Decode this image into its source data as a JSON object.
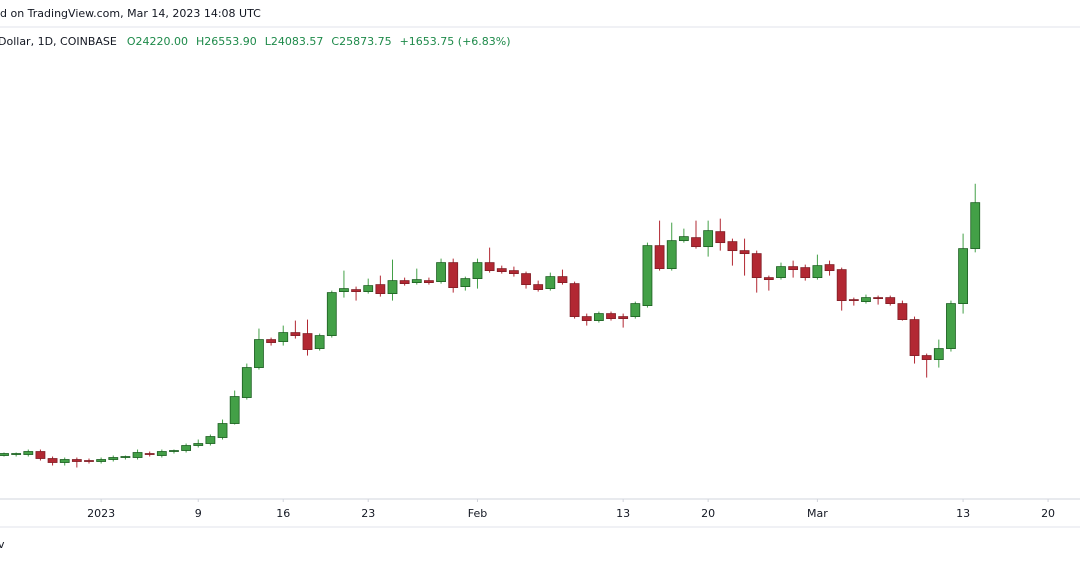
{
  "chart_data": {
    "type": "candlestick",
    "header": "d on TradingView.com, Mar 14, 2023 14:08 UTC",
    "symbol": "Dollar, 1D, COINBASE",
    "legend_values": [
      "O24220.00",
      "H26553.90",
      "L24083.57",
      "C25873.75",
      "+1653.75 (+6.83%)"
    ],
    "footer": "v",
    "up_color": "#43a047",
    "down_color": "#b22833",
    "xlim": [
      -0.33,
      88.63
    ],
    "ylim": [
      15200,
      32200
    ],
    "xticks": [
      {
        "value": 8,
        "label": "2023"
      },
      {
        "value": 16,
        "label": "9"
      },
      {
        "value": 23,
        "label": "16"
      },
      {
        "value": 30,
        "label": "23"
      },
      {
        "value": 39,
        "label": "Feb"
      },
      {
        "value": 51,
        "label": "13"
      },
      {
        "value": 58,
        "label": "20"
      },
      {
        "value": 67,
        "label": "Mar"
      },
      {
        "value": 79,
        "label": "13"
      },
      {
        "value": 86,
        "label": "20"
      }
    ],
    "open": [
      16766,
      16802,
      16802,
      16910,
      16658,
      16514,
      16622,
      16586,
      16550,
      16622,
      16694,
      16694,
      16838,
      16766,
      16910,
      16946,
      17126,
      17198,
      17414,
      17918,
      18854,
      19934,
      20942,
      20870,
      21194,
      21158,
      20618,
      21086,
      22670,
      22742,
      22670,
      22922,
      22598,
      23066,
      22994,
      23066,
      23030,
      23714,
      22850,
      23138,
      23714,
      23498,
      23426,
      23318,
      22922,
      22778,
      23210,
      22958,
      21770,
      21626,
      21878,
      21770,
      21770,
      22166,
      24326,
      23498,
      24506,
      24614,
      24290,
      24830,
      24470,
      24146,
      24038,
      23174,
      23174,
      23570,
      23534,
      23174,
      23642,
      23462,
      22382,
      22310,
      22454,
      22454,
      22238,
      21662,
      20366,
      20222,
      20618,
      22238,
      24220.0
    ],
    "high": [
      16874,
      16874,
      16982,
      16982,
      16730,
      16694,
      16694,
      16658,
      16694,
      16766,
      16766,
      16982,
      16910,
      16982,
      16982,
      17198,
      17342,
      17522,
      18062,
      19106,
      20078,
      21338,
      21014,
      21446,
      21626,
      21662,
      21158,
      22706,
      23426,
      22850,
      23138,
      23246,
      23822,
      23174,
      23498,
      23174,
      23858,
      23858,
      23210,
      23858,
      24254,
      23606,
      23570,
      23390,
      23066,
      23354,
      23462,
      23030,
      21878,
      21950,
      21950,
      21878,
      22310,
      24434,
      25226,
      25154,
      24938,
      25226,
      25226,
      25298,
      24578,
      24578,
      24146,
      23246,
      23714,
      23786,
      23642,
      24002,
      23786,
      23534,
      22454,
      22562,
      22526,
      22526,
      22346,
      21770,
      20438,
      20942,
      22346,
      24758,
      26553.9
    ],
    "low": [
      16730,
      16730,
      16730,
      16586,
      16406,
      16406,
      16334,
      16478,
      16478,
      16550,
      16622,
      16622,
      16730,
      16694,
      16838,
      16874,
      17054,
      17126,
      17342,
      17882,
      18782,
      19862,
      20726,
      20726,
      20978,
      20366,
      20546,
      21014,
      22454,
      22346,
      22598,
      22490,
      22346,
      22886,
      22922,
      22922,
      22958,
      22634,
      22706,
      22778,
      23354,
      23318,
      23210,
      22778,
      22670,
      22706,
      22922,
      21698,
      21446,
      21554,
      21626,
      21374,
      21698,
      22094,
      23426,
      23426,
      24434,
      24218,
      23930,
      24146,
      23606,
      23246,
      22634,
      22706,
      23102,
      23174,
      23066,
      23102,
      23246,
      21986,
      22166,
      22238,
      22202,
      22166,
      21626,
      20078,
      19574,
      19934,
      20510,
      21878,
      24083.57
    ],
    "close": [
      16838,
      16838,
      16910,
      16658,
      16514,
      16622,
      16550,
      16550,
      16622,
      16694,
      16730,
      16874,
      16802,
      16910,
      16946,
      17126,
      17198,
      17450,
      17918,
      18890,
      19934,
      20942,
      20834,
      21194,
      21086,
      20582,
      21086,
      22634,
      22778,
      22670,
      22886,
      22598,
      23066,
      22958,
      23102,
      22994,
      23714,
      22814,
      23138,
      23714,
      23426,
      23390,
      23318,
      22922,
      22742,
      23210,
      22994,
      21770,
      21626,
      21878,
      21698,
      21698,
      22238,
      24326,
      23498,
      24506,
      24650,
      24290,
      24866,
      24434,
      24146,
      24038,
      23174,
      23102,
      23570,
      23462,
      23174,
      23606,
      23426,
      22346,
      22346,
      22454,
      22418,
      22238,
      21662,
      20366,
      20222,
      20618,
      22238,
      24218,
      25873.75
    ]
  }
}
